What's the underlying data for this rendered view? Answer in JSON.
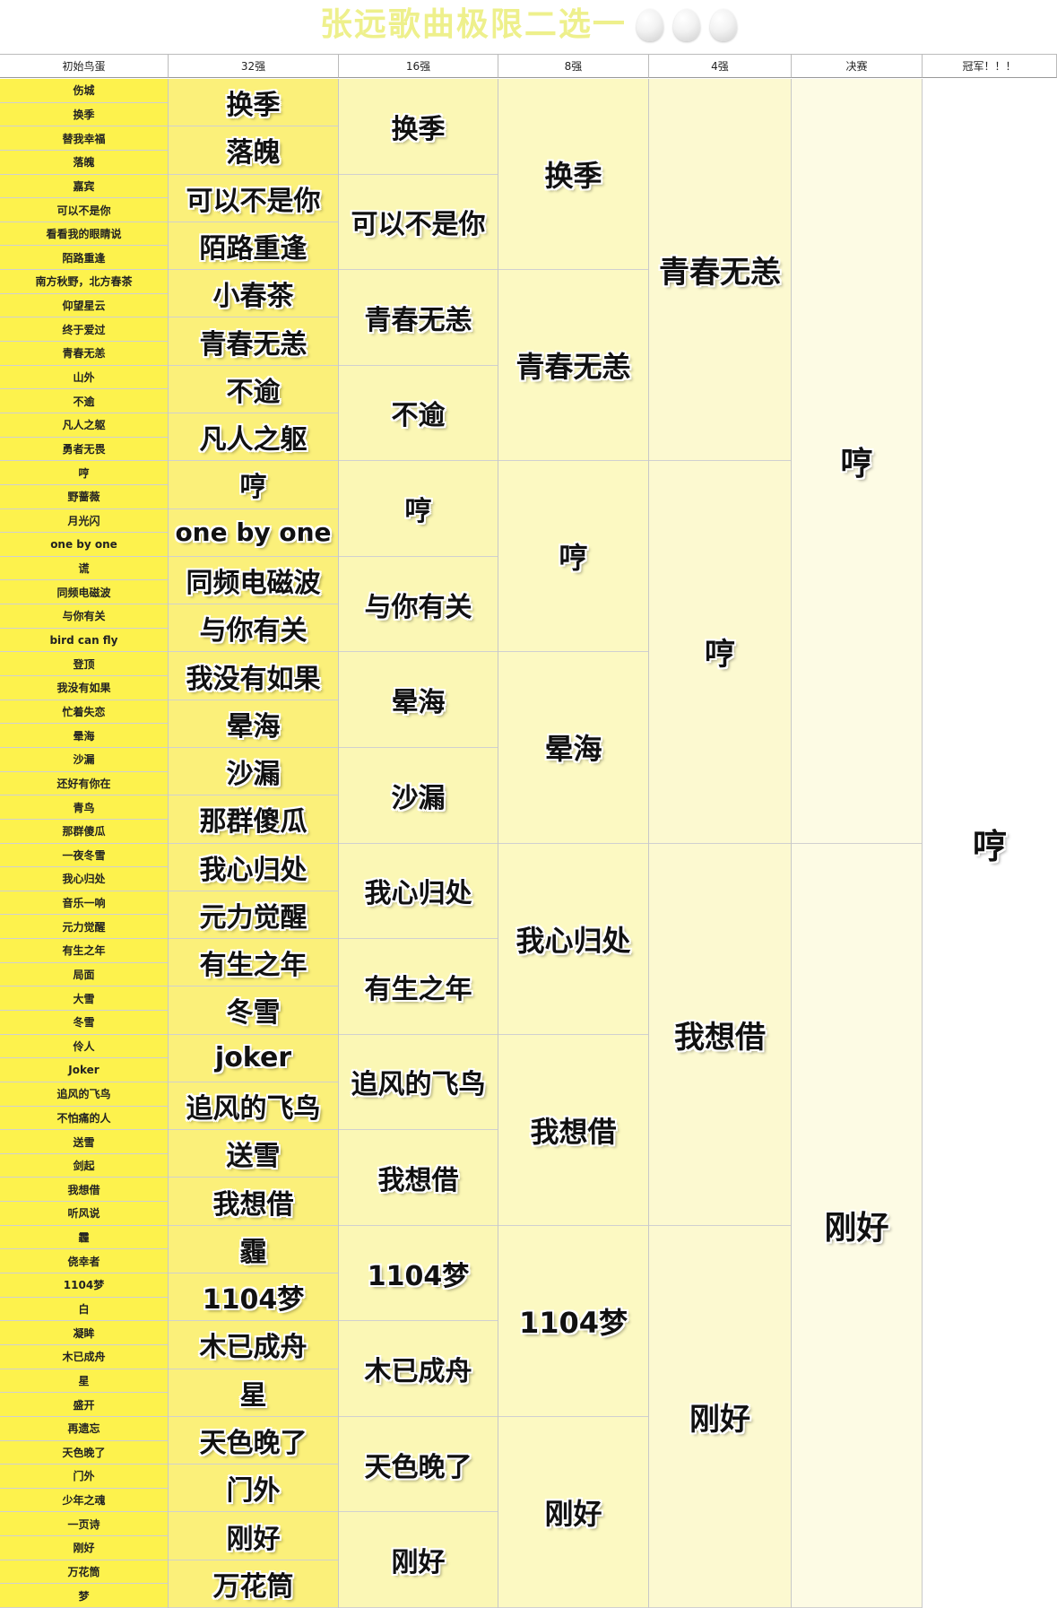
{
  "title": "张远歌曲极限二选一",
  "title_decoration": "three-eggs",
  "headers": [
    "初始鸟蛋",
    "32强",
    "16强",
    "8强",
    "4强",
    "决赛",
    "冠军！！！"
  ],
  "colors": {
    "col_initial": "#fdf24d",
    "col_32": "#fbf07a",
    "col_16": "#fbf7b5",
    "col_8": "#fcf9c2",
    "col_4": "#fcf9d0",
    "col_final": "#fdfbe4",
    "col_champion": "#ffffff",
    "title": "#eef08c"
  },
  "round_initial": [
    "伤城",
    "换季",
    "替我幸福",
    "落魄",
    "嘉宾",
    "可以不是你",
    "看看我的眼睛说",
    "陌路重逢",
    "南方秋野，北方春茶",
    "仰望星云",
    "终于爱过",
    "青春无恙",
    "山外",
    "不逾",
    "凡人之躯",
    "勇者无畏",
    "哼",
    "野蔷薇",
    "月光闪",
    "one by one",
    "谎",
    "同频电磁波",
    "与你有关",
    "bird can fly",
    "登顶",
    "我没有如果",
    "忙着失恋",
    "晕海",
    "沙漏",
    "还好有你在",
    "青鸟",
    "那群傻瓜",
    "一夜冬雪",
    "我心归处",
    "音乐一响",
    "元力觉醒",
    "有生之年",
    "局面",
    "大雪",
    "冬雪",
    "伶人",
    "Joker",
    "追风的飞鸟",
    "不怕痛的人",
    "送雪",
    "剑起",
    "我想借",
    "听风说",
    "霾",
    "侥幸者",
    "1104梦",
    "白",
    "凝眸",
    "木已成舟",
    "星",
    "盛开",
    "再遗忘",
    "天色晚了",
    "门外",
    "少年之魂",
    "一页诗",
    "刚好",
    "万花筒",
    "梦"
  ],
  "round_32": [
    "换季",
    "落魄",
    "可以不是你",
    "陌路重逢",
    "小春茶",
    "青春无恙",
    "不逾",
    "凡人之躯",
    "哼",
    "one by one",
    "同频电磁波",
    "与你有关",
    "我没有如果",
    "晕海",
    "沙漏",
    "那群傻瓜",
    "我心归处",
    "元力觉醒",
    "有生之年",
    "冬雪",
    "joker",
    "追风的飞鸟",
    "送雪",
    "我想借",
    "霾",
    "1104梦",
    "木已成舟",
    "星",
    "天色晚了",
    "门外",
    "刚好",
    "万花筒"
  ],
  "round_16": [
    "换季",
    "可以不是你",
    "青春无恙",
    "不逾",
    "哼",
    "与你有关",
    "晕海",
    "沙漏",
    "我心归处",
    "有生之年",
    "追风的飞鸟",
    "我想借",
    "1104梦",
    "木已成舟",
    "天色晚了",
    "刚好"
  ],
  "round_8": [
    "换季",
    "青春无恙",
    "哼",
    "晕海",
    "我心归处",
    "我想借",
    "1104梦",
    "刚好"
  ],
  "round_4": [
    "青春无恙",
    "哼",
    "我想借",
    "刚好"
  ],
  "round_final": [
    "哼",
    "刚好"
  ],
  "champion": "哼"
}
